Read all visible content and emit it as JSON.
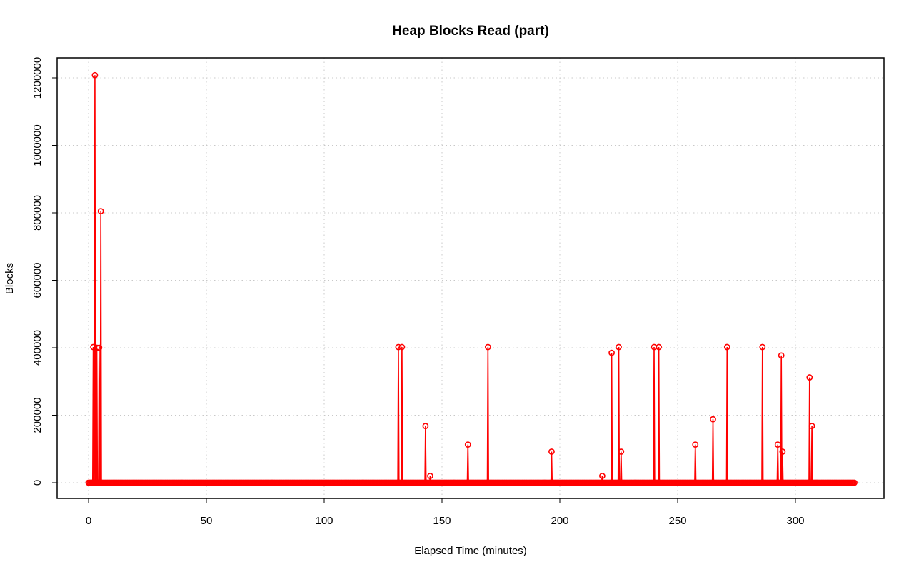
{
  "chart_data": {
    "type": "line",
    "title": "Heap Blocks Read (part)",
    "xlabel": "Elapsed Time (minutes)",
    "ylabel": "Blocks",
    "xlim": [
      0,
      325
    ],
    "ylim": [
      0,
      1200000
    ],
    "x_ticks": [
      0,
      50,
      100,
      150,
      200,
      250,
      300
    ],
    "y_ticks": [
      0,
      200000,
      400000,
      600000,
      800000,
      1000000,
      1200000
    ],
    "x_tick_labels": [
      "0",
      "50",
      "100",
      "150",
      "200",
      "250",
      "300"
    ],
    "y_tick_labels": [
      "0",
      "200000",
      "400000",
      "600000",
      "800000",
      "1000000",
      "1200000"
    ],
    "grid": true,
    "color": "#ff0000",
    "marker": "open-circle",
    "baseline": {
      "x_start": 0,
      "x_end": 325,
      "step": 0.5,
      "value": 0
    },
    "peaks": [
      {
        "x": 2.0,
        "y": 402000
      },
      {
        "x": 2.7,
        "y": 1208000
      },
      {
        "x": 3.5,
        "y": 400000
      },
      {
        "x": 4.5,
        "y": 400000
      },
      {
        "x": 5.2,
        "y": 805000
      },
      {
        "x": 131.5,
        "y": 402000
      },
      {
        "x": 133.0,
        "y": 402000
      },
      {
        "x": 143.0,
        "y": 168000
      },
      {
        "x": 145.0,
        "y": 20000
      },
      {
        "x": 161.0,
        "y": 113000
      },
      {
        "x": 169.5,
        "y": 402000
      },
      {
        "x": 196.5,
        "y": 92000
      },
      {
        "x": 218.0,
        "y": 20000
      },
      {
        "x": 222.0,
        "y": 385000
      },
      {
        "x": 225.0,
        "y": 402000
      },
      {
        "x": 226.0,
        "y": 92000
      },
      {
        "x": 240.0,
        "y": 402000
      },
      {
        "x": 242.0,
        "y": 402000
      },
      {
        "x": 257.5,
        "y": 113000
      },
      {
        "x": 265.0,
        "y": 188000
      },
      {
        "x": 271.0,
        "y": 402000
      },
      {
        "x": 286.0,
        "y": 402000
      },
      {
        "x": 292.5,
        "y": 113000
      },
      {
        "x": 294.0,
        "y": 377000
      },
      {
        "x": 294.5,
        "y": 92000
      },
      {
        "x": 306.0,
        "y": 312000
      },
      {
        "x": 307.0,
        "y": 168000
      }
    ]
  }
}
